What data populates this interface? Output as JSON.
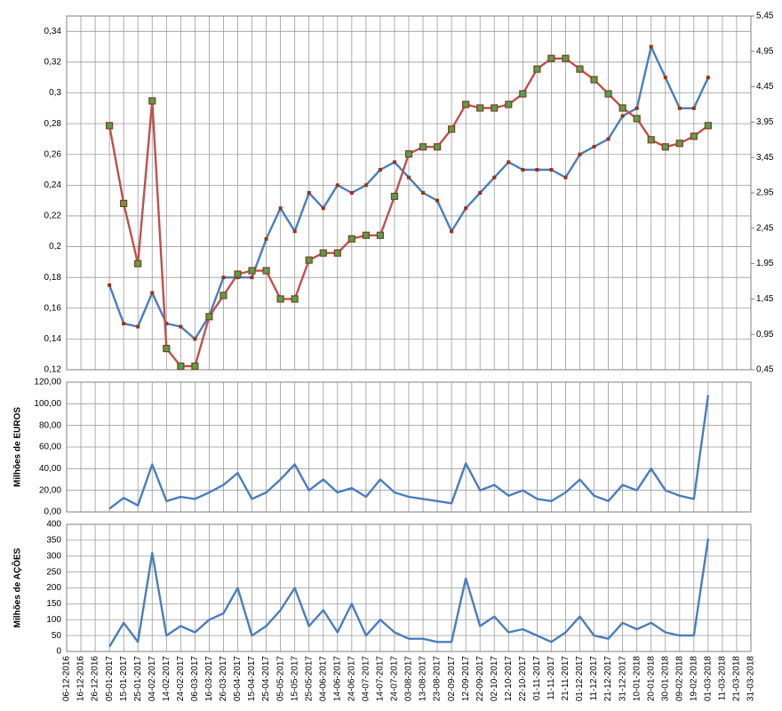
{
  "chart_data": [
    {
      "type": "line",
      "grid": true,
      "ylim": [
        0.12,
        0.35
      ],
      "yticks": [
        {
          "value": 0.12,
          "label": "0,12"
        },
        {
          "value": 0.14,
          "label": "0,14"
        },
        {
          "value": 0.16,
          "label": "0,16"
        },
        {
          "value": 0.18,
          "label": "0,18"
        },
        {
          "value": 0.2,
          "label": "0,2"
        },
        {
          "value": 0.22,
          "label": "0,22"
        },
        {
          "value": 0.24,
          "label": "0,24"
        },
        {
          "value": 0.26,
          "label": "0,26"
        },
        {
          "value": 0.28,
          "label": "0,28"
        },
        {
          "value": 0.3,
          "label": "0,3"
        },
        {
          "value": 0.32,
          "label": "0,32"
        },
        {
          "value": 0.34,
          "label": "0,34"
        }
      ],
      "y2lim": [
        0.45,
        5.45
      ],
      "y2ticks": [
        {
          "value": 0.45,
          "label": "0,45"
        },
        {
          "value": 0.95,
          "label": "0,95"
        },
        {
          "value": 1.45,
          "label": "1,45"
        },
        {
          "value": 1.95,
          "label": "1,95"
        },
        {
          "value": 2.45,
          "label": "2,45"
        },
        {
          "value": 2.95,
          "label": "2,95"
        },
        {
          "value": 3.45,
          "label": "3,45"
        },
        {
          "value": 3.95,
          "label": "3,95"
        },
        {
          "value": 4.45,
          "label": "4,45"
        },
        {
          "value": 4.95,
          "label": "4,95"
        },
        {
          "value": 5.45,
          "label": "5,45"
        }
      ],
      "series": [
        {
          "color": "#4a7ebb",
          "marker_color": "#a0300f",
          "marker_size": 4,
          "values": [
            null,
            null,
            null,
            0.175,
            0.15,
            0.148,
            0.17,
            0.15,
            0.148,
            0.14,
            0.155,
            0.18,
            0.18,
            0.18,
            0.205,
            0.225,
            0.21,
            0.235,
            0.225,
            0.24,
            0.235,
            0.24,
            0.25,
            0.255,
            0.245,
            0.235,
            0.23,
            0.21,
            0.225,
            0.235,
            0.245,
            0.255,
            0.25,
            0.25,
            0.25,
            0.245,
            0.26,
            0.265,
            0.27,
            0.285,
            0.29,
            0.33,
            0.31,
            0.29,
            0.29,
            0.31,
            null,
            null,
            null
          ]
        },
        {
          "color": "#c0504d",
          "axis": "y2",
          "marker_color": "#4ea24e",
          "marker_edge": "#8b3a1a",
          "marker_size": 7,
          "values": [
            null,
            null,
            null,
            3.9,
            2.8,
            1.95,
            4.25,
            0.75,
            0.5,
            0.5,
            1.2,
            1.5,
            1.8,
            1.85,
            1.85,
            1.45,
            1.45,
            2.0,
            2.1,
            2.1,
            2.3,
            2.35,
            2.35,
            2.9,
            3.5,
            3.6,
            3.6,
            3.85,
            4.2,
            4.15,
            4.15,
            4.2,
            4.35,
            4.7,
            4.85,
            4.85,
            4.7,
            4.55,
            4.35,
            4.15,
            4.0,
            3.7,
            3.6,
            3.65,
            3.75,
            3.9,
            null,
            null,
            null
          ]
        }
      ]
    },
    {
      "type": "line",
      "grid": true,
      "y_label": "Milhões de EUROS",
      "ylim": [
        0,
        120
      ],
      "yticks": [
        {
          "value": 0,
          "label": "0,00"
        },
        {
          "value": 20,
          "label": "20,00"
        },
        {
          "value": 40,
          "label": "40,00"
        },
        {
          "value": 60,
          "label": "60,00"
        },
        {
          "value": 80,
          "label": "80,00"
        },
        {
          "value": 100,
          "label": "100,00"
        },
        {
          "value": 120,
          "label": "120,00"
        }
      ],
      "series": [
        {
          "color": "#4a7ebb",
          "values": [
            null,
            null,
            null,
            3,
            13,
            6,
            44,
            10,
            14,
            12,
            18,
            25,
            36,
            12,
            18,
            30,
            44,
            20,
            30,
            18,
            22,
            14,
            30,
            18,
            14,
            12,
            10,
            8,
            45,
            20,
            25,
            15,
            20,
            12,
            10,
            18,
            30,
            15,
            10,
            25,
            20,
            40,
            20,
            15,
            12,
            108,
            null,
            null,
            null
          ]
        }
      ]
    },
    {
      "type": "line",
      "grid": true,
      "y_label": "Milhões de AÇÕES",
      "ylim": [
        0,
        400
      ],
      "yticks": [
        0,
        50,
        100,
        150,
        200,
        250,
        300,
        350,
        400
      ],
      "categories": [
        "06-12-2016",
        "16-12-2016",
        "26-12-2016",
        "05-01-2017",
        "15-01-2017",
        "25-01-2017",
        "04-02-2017",
        "14-02-2017",
        "24-02-2017",
        "06-03-2017",
        "16-03-2017",
        "26-03-2017",
        "05-04-2017",
        "15-04-2017",
        "25-04-2017",
        "05-05-2017",
        "15-05-2017",
        "25-05-2017",
        "04-06-2017",
        "14-06-2017",
        "24-06-2017",
        "04-07-2017",
        "14-07-2017",
        "24-07-2017",
        "03-08-2017",
        "13-08-2017",
        "23-08-2017",
        "02-09-2017",
        "12-09-2017",
        "22-09-2017",
        "02-10-2017",
        "12-10-2017",
        "22-10-2017",
        "01-11-2017",
        "11-11-2017",
        "21-11-2017",
        "01-12-2017",
        "11-12-2017",
        "21-12-2017",
        "31-12-2017",
        "10-01-2018",
        "20-01-2018",
        "30-01-2018",
        "09-02-2018",
        "19-02-2018",
        "01-03-2018",
        "11-03-2018",
        "21-03-2018",
        "31-03-2018"
      ],
      "series": [
        {
          "color": "#4a7ebb",
          "values": [
            null,
            null,
            null,
            15,
            90,
            30,
            310,
            50,
            80,
            60,
            100,
            120,
            200,
            50,
            80,
            130,
            200,
            80,
            130,
            60,
            150,
            50,
            100,
            60,
            40,
            40,
            30,
            30,
            230,
            80,
            110,
            60,
            70,
            50,
            30,
            60,
            110,
            50,
            40,
            90,
            70,
            90,
            60,
            50,
            50,
            355,
            null,
            null,
            null
          ]
        }
      ]
    }
  ]
}
